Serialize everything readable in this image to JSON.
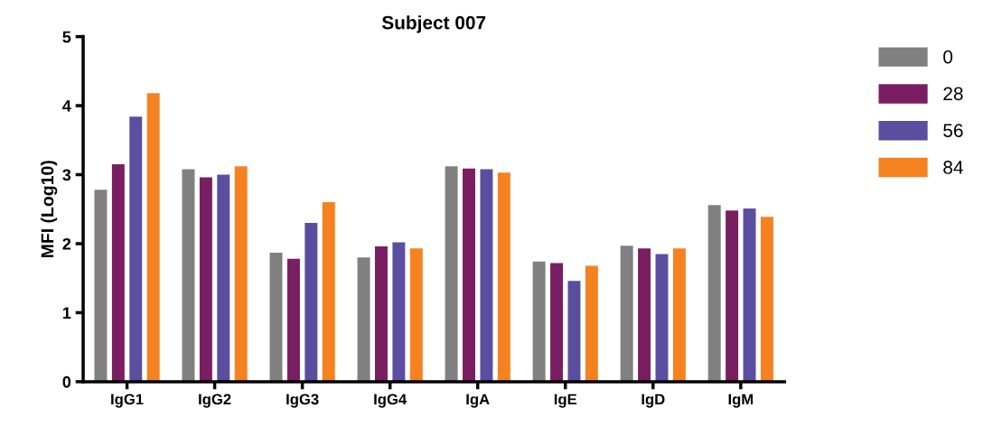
{
  "chart_data": {
    "type": "bar",
    "title": "Subject 007",
    "ylabel": "MFI (Log10)",
    "categories": [
      "IgG1",
      "IgG2",
      "IgG3",
      "IgG4",
      "IgA",
      "IgE",
      "IgD",
      "IgM"
    ],
    "series": [
      {
        "name": "0",
        "color": "#808080",
        "values": [
          2.78,
          3.08,
          1.87,
          1.8,
          3.12,
          1.74,
          1.97,
          2.56
        ]
      },
      {
        "name": "28",
        "color": "#7a1e62",
        "values": [
          3.15,
          2.96,
          1.78,
          1.96,
          3.09,
          1.72,
          1.93,
          2.48
        ]
      },
      {
        "name": "56",
        "color": "#5b4ea0",
        "values": [
          3.84,
          3.0,
          2.3,
          2.02,
          3.08,
          1.46,
          1.85,
          2.51
        ]
      },
      {
        "name": "84",
        "color": "#f58220",
        "values": [
          4.18,
          3.12,
          2.6,
          1.93,
          3.03,
          1.68,
          1.93,
          2.39
        ]
      }
    ],
    "ylim": [
      0,
      5
    ],
    "yticks": [
      0,
      1,
      2,
      3,
      4,
      5
    ],
    "grid": false,
    "legend": "right"
  }
}
